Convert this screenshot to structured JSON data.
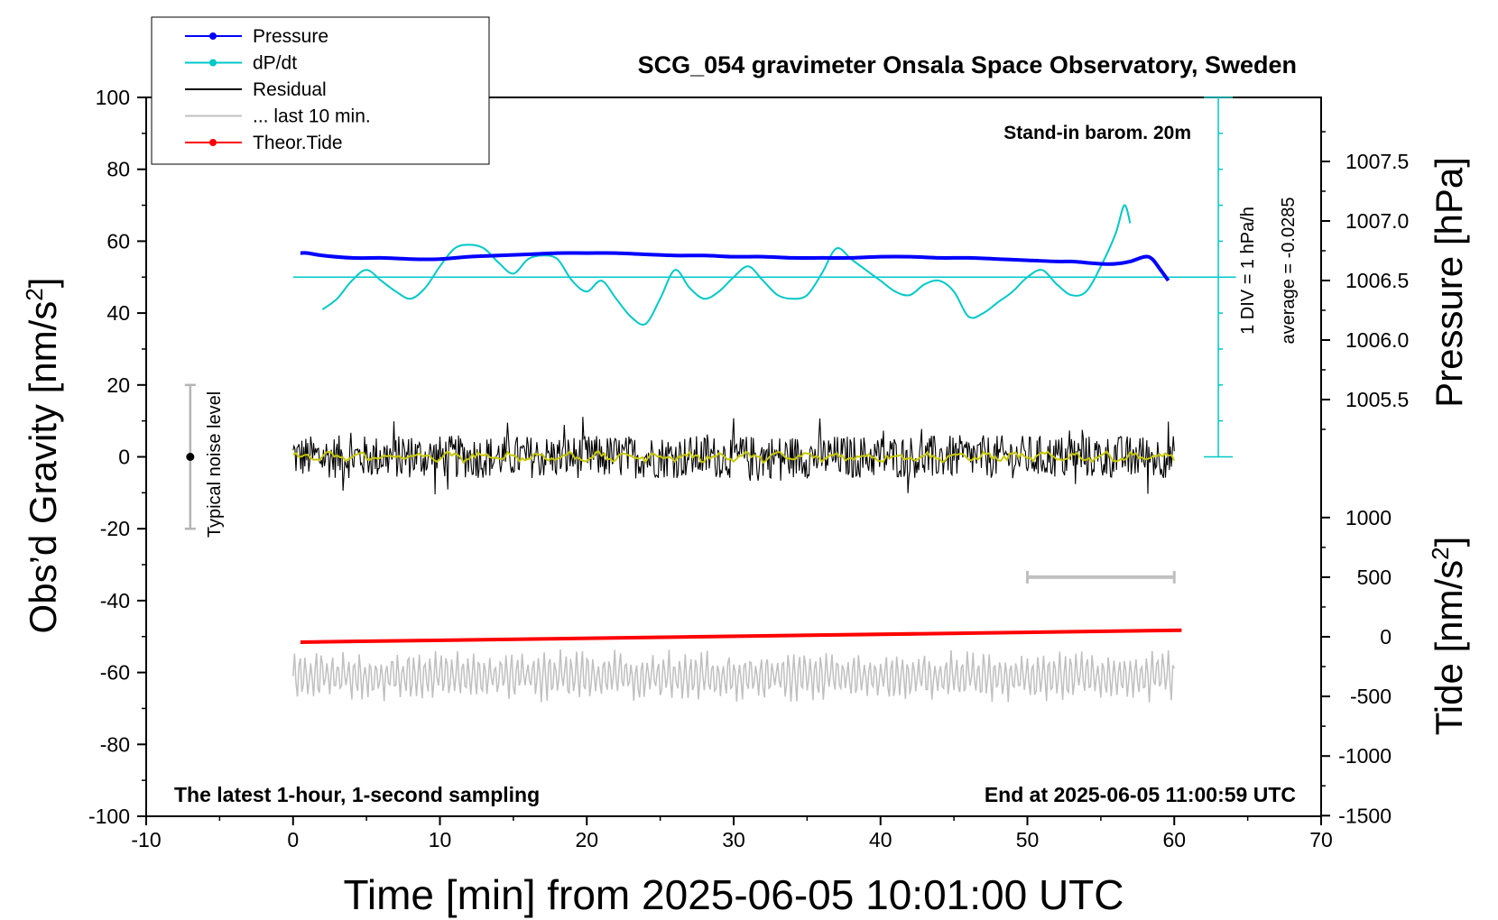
{
  "chart_data": {
    "type": "line",
    "title": "SCG_054 gravimeter Onsala Space Observatory, Sweden",
    "xlabel": "Time [min] from 2025-06-05 10:01:00 UTC",
    "ylabel_left_main": "Obs’d Gravity [nm/s",
    "ylabel_left_sup": "2",
    "ylabel_left_end": "]",
    "ylabel_right_top": "Pressure [hPa]",
    "ylabel_right_bottom_main": "Tide [nm/s",
    "ylabel_right_bottom_sup": "2",
    "ylabel_right_bottom_end": "]",
    "xlim": [
      -10,
      70
    ],
    "ylim": [
      -100,
      100
    ],
    "x_ticks": [
      "-10",
      "0",
      "10",
      "20",
      "30",
      "40",
      "50",
      "60",
      "70"
    ],
    "y_ticks": [
      "100",
      "80",
      "60",
      "40",
      "20",
      "0",
      "-20",
      "-40",
      "-60",
      "-80",
      "-100"
    ],
    "pressure_axis": {
      "range": [
        1005.0,
        1008.0
      ],
      "ticks": [
        "1007.5",
        "1007.0",
        "1006.5",
        "1006.0",
        "1005.5"
      ],
      "tick_values": [
        1007.5,
        1007.0,
        1006.5,
        1006.0,
        1005.5
      ]
    },
    "tide_axis": {
      "range": [
        -1500,
        1000
      ],
      "ticks": [
        "1000",
        "500",
        "0",
        "-500",
        "-1000",
        "-1500"
      ],
      "tick_values": [
        1000,
        500,
        0,
        -500,
        -1000,
        -1500
      ]
    },
    "annotations": {
      "stand_in": "Stand-in barom. 20m",
      "div_note": "1 DIV = 1 hPa/h",
      "average_note": "average = -0.0285",
      "noise_label": "Typical noise level",
      "latest_note": "The latest 1-hour, 1-second sampling",
      "end_note": "End at 2025-06-05 11:00:59 UTC"
    },
    "legend": [
      {
        "label": "Pressure",
        "color": "#0000ff",
        "marker": true
      },
      {
        "label": "dP/dt",
        "color": "#00c8c8",
        "marker": true
      },
      {
        "label": "Residual",
        "color": "#000000",
        "marker": false
      },
      {
        "label": "... last 10 min.",
        "color": "#c0c0c0",
        "marker": false
      },
      {
        "label": "Theor.Tide",
        "color": "#ff0000",
        "marker": true
      }
    ],
    "series": [
      {
        "name": "Pressure",
        "color": "#0000ff",
        "axis": "pressure",
        "x": [
          0.5,
          1,
          2,
          4,
          6,
          8,
          10,
          12,
          14,
          16,
          18,
          20,
          22,
          24,
          26,
          28,
          30,
          32,
          34,
          36,
          38,
          40,
          42,
          44,
          46,
          48,
          50,
          52,
          53,
          54,
          55,
          56,
          57,
          58,
          58.5,
          59,
          59.6
        ],
        "y": [
          1006.73,
          1006.73,
          1006.71,
          1006.69,
          1006.69,
          1006.68,
          1006.68,
          1006.7,
          1006.71,
          1006.72,
          1006.73,
          1006.73,
          1006.73,
          1006.72,
          1006.71,
          1006.71,
          1006.7,
          1006.7,
          1006.69,
          1006.69,
          1006.69,
          1006.7,
          1006.7,
          1006.69,
          1006.69,
          1006.68,
          1006.67,
          1006.66,
          1006.66,
          1006.65,
          1006.64,
          1006.64,
          1006.66,
          1006.7,
          1006.68,
          1006.6,
          1006.5
        ]
      },
      {
        "name": "dP/dt",
        "color": "#00c8c8",
        "axis": "gravity",
        "x": [
          2,
          3,
          4,
          5,
          6,
          7,
          8,
          9,
          10,
          11,
          12,
          13,
          14,
          15,
          16,
          17,
          18,
          19,
          20,
          21,
          22,
          23,
          24,
          25,
          26,
          27,
          28,
          29,
          30,
          31,
          32,
          33,
          34,
          35,
          36,
          37,
          38,
          39,
          40,
          41,
          42,
          43,
          44,
          45,
          46,
          47,
          48,
          49,
          50,
          51,
          52,
          53,
          54,
          55,
          56,
          56.6,
          57
        ],
        "y": [
          41,
          44,
          49,
          52,
          49,
          46,
          44,
          47,
          53,
          58,
          59,
          58,
          54,
          51,
          55,
          56,
          55,
          49,
          46,
          49,
          44,
          39,
          37,
          44,
          52,
          47,
          44,
          46,
          50,
          53,
          49,
          45,
          44,
          45,
          51,
          58,
          55,
          52,
          49,
          46,
          45,
          48,
          49,
          46,
          39,
          40,
          43,
          46,
          50,
          52,
          48,
          45,
          46,
          53,
          62,
          70,
          65
        ]
      },
      {
        "name": "Theor.Tide",
        "color": "#ff0000",
        "axis": "tide",
        "x": [
          0.5,
          60.5
        ],
        "y": [
          -45,
          55
        ]
      },
      {
        "name": "Residual",
        "color": "#000000",
        "axis": "gravity",
        "x_range": [
          0,
          60
        ],
        "amplitude": 6
      },
      {
        "name": "... last 10 min.",
        "color": "#c0c0c0",
        "axis": "gravity",
        "x_range": [
          0,
          60
        ],
        "offset": -61,
        "amplitude": 5
      }
    ],
    "noise_bar": {
      "x": -7,
      "y_range": [
        -20,
        20
      ]
    },
    "time_scale_bar": {
      "x_range": [
        50,
        60
      ],
      "tide_value": 500
    },
    "dpdt_zero_line": 50,
    "dpdt_axis_x": 63,
    "grid": false,
    "legend_position": "top-left"
  }
}
